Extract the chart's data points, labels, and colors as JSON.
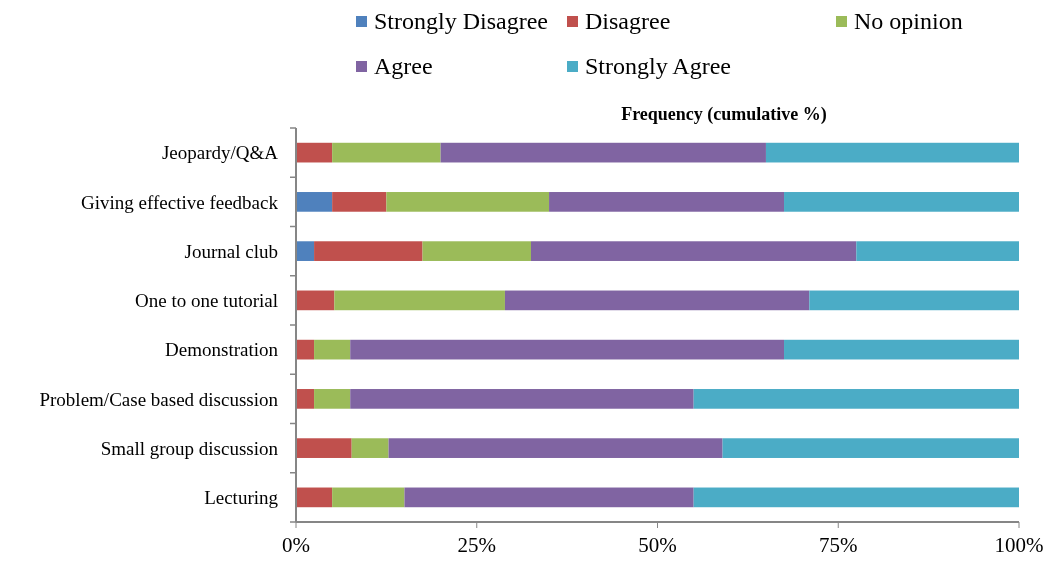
{
  "chart_data": {
    "type": "bar",
    "orientation": "horizontal",
    "stacked": true,
    "title": "Frequency (cumulative %)",
    "categories": [
      "Jeopardy/Q&A",
      "Giving effective feedback",
      "Journal club",
      "One to one tutorial",
      "Demonstration",
      "Problem/Case based discussion",
      "Small group discussion",
      "Lecturing"
    ],
    "series": [
      {
        "name": "Strongly Disagree",
        "color": "#4f81bd",
        "values": [
          0,
          5,
          2.5,
          0,
          0,
          0,
          0,
          0
        ]
      },
      {
        "name": "Disagree",
        "color": "#c0504d",
        "values": [
          5,
          7.5,
          15,
          5.3,
          2.5,
          2.5,
          7.7,
          5
        ]
      },
      {
        "name": "No opinion",
        "color": "#9bbb59",
        "values": [
          15,
          22.5,
          15,
          23.6,
          5,
          5,
          5.1,
          10
        ]
      },
      {
        "name": "Agree",
        "color": "#8064a2",
        "values": [
          45,
          32.5,
          45,
          42.1,
          60,
          47.5,
          46.2,
          40
        ]
      },
      {
        "name": "Strongly Agree",
        "color": "#4bacc6",
        "values": [
          35,
          32.5,
          22.5,
          29,
          32.5,
          45,
          41,
          45
        ]
      }
    ],
    "xlim": [
      0,
      100
    ],
    "xticks": [
      {
        "value": 0,
        "label": "0%"
      },
      {
        "value": 25,
        "label": "25%"
      },
      {
        "value": 50,
        "label": "50%"
      },
      {
        "value": 75,
        "label": "75%"
      },
      {
        "value": 100,
        "label": "100%"
      }
    ],
    "legend": "top",
    "grid": false
  }
}
